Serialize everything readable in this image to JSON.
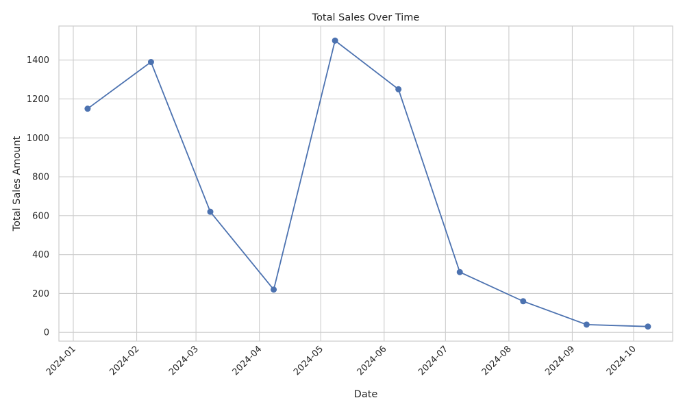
{
  "chart_data": {
    "type": "line",
    "title": "Total Sales Over Time",
    "xlabel": "Date",
    "ylabel": "Total Sales Amount",
    "x": [
      "2024-01-08",
      "2024-02-08",
      "2024-03-08",
      "2024-04-08",
      "2024-05-08",
      "2024-06-08",
      "2024-07-08",
      "2024-08-08",
      "2024-09-08",
      "2024-10-08"
    ],
    "series": [
      {
        "values": [
          1150,
          1390,
          620,
          220,
          1500,
          1250,
          310,
          160,
          40,
          30
        ]
      }
    ],
    "x_ticks": [
      "2024-01",
      "2024-02",
      "2024-03",
      "2024-04",
      "2024-05",
      "2024-06",
      "2024-07",
      "2024-08",
      "2024-09",
      "2024-10"
    ],
    "y_ticks": [
      "0",
      "200",
      "400",
      "600",
      "800",
      "1000",
      "1200",
      "1400"
    ],
    "ylim": [
      -45,
      1575
    ],
    "grid": true,
    "legend": "none",
    "color": "#4c72b0"
  }
}
